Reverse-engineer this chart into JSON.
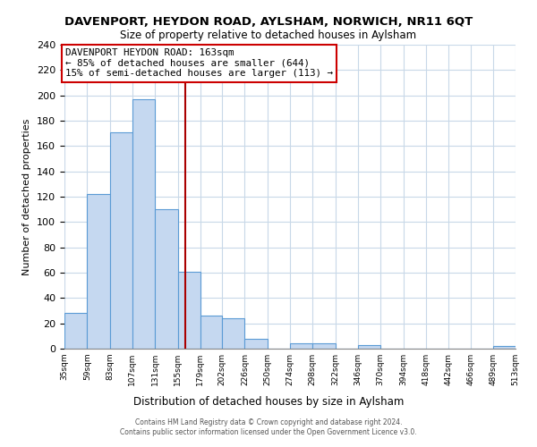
{
  "title": "DAVENPORT, HEYDON ROAD, AYLSHAM, NORWICH, NR11 6QT",
  "subtitle": "Size of property relative to detached houses in Aylsham",
  "xlabel": "Distribution of detached houses by size in Aylsham",
  "ylabel": "Number of detached properties",
  "bar_edges": [
    35,
    59,
    83,
    107,
    131,
    155,
    179,
    202,
    226,
    250,
    274,
    298,
    322,
    346,
    370,
    394,
    418,
    442,
    466,
    489,
    513
  ],
  "bar_heights": [
    28,
    122,
    171,
    197,
    110,
    61,
    26,
    24,
    8,
    0,
    4,
    4,
    0,
    3,
    0,
    0,
    0,
    0,
    0,
    2
  ],
  "bar_color": "#c5d8f0",
  "bar_edge_color": "#5b9bd5",
  "vline_x": 163,
  "vline_color": "#aa0000",
  "annotation_title": "DAVENPORT HEYDON ROAD: 163sqm",
  "annotation_line1": "← 85% of detached houses are smaller (644)",
  "annotation_line2": "15% of semi-detached houses are larger (113) →",
  "annotation_box_color": "#ffffff",
  "annotation_border_color": "#cc0000",
  "ylim": [
    0,
    240
  ],
  "yticks": [
    0,
    20,
    40,
    60,
    80,
    100,
    120,
    140,
    160,
    180,
    200,
    220,
    240
  ],
  "tick_labels": [
    "35sqm",
    "59sqm",
    "83sqm",
    "107sqm",
    "131sqm",
    "155sqm",
    "179sqm",
    "202sqm",
    "226sqm",
    "250sqm",
    "274sqm",
    "298sqm",
    "322sqm",
    "346sqm",
    "370sqm",
    "394sqm",
    "418sqm",
    "442sqm",
    "466sqm",
    "489sqm",
    "513sqm"
  ],
  "footer_line1": "Contains HM Land Registry data © Crown copyright and database right 2024.",
  "footer_line2": "Contains public sector information licensed under the Open Government Licence v3.0.",
  "background_color": "#ffffff",
  "grid_color": "#c8d8e8"
}
